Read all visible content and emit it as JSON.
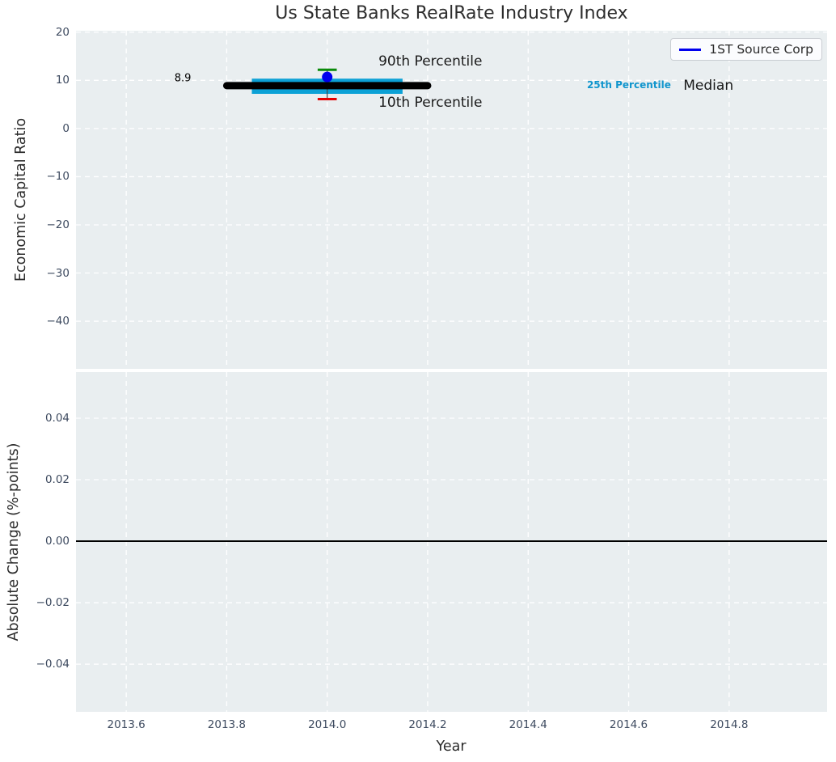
{
  "colors": {
    "figure_background": "#ffffff",
    "plot_background": "#e9eef0",
    "gridline": "#ffffff",
    "tick_label": "#3d4a5f",
    "axis_label": "#2b2b2b",
    "title": "#2d2d2d",
    "accent_blue": "#0000ee",
    "cyan_band": "#0ca1d6",
    "green_cap": "#0a8a0a",
    "red_cap": "#e60000",
    "median_black": "#000000"
  },
  "chart_data": [
    {
      "type": "line",
      "title": "Us State Banks RealRate Industry Index",
      "xlabel": "",
      "ylabel": "Economic Capital Ratio",
      "xlim": [
        2013.5,
        2014.995
      ],
      "ylim": [
        -49.9,
        20.3
      ],
      "grid": true,
      "xticks": [
        2013.6,
        2013.8,
        2014.0,
        2014.2,
        2014.4,
        2014.6,
        2014.8
      ],
      "xtick_labels": [],
      "yticks": [
        20,
        10,
        0,
        -10,
        -20,
        -30,
        -40
      ],
      "ytick_labels": [
        "20",
        "10",
        "0",
        "−10",
        "−20",
        "−30",
        "−40"
      ],
      "legend": {
        "label": "1ST Source Corp",
        "color": "#0000ee",
        "loc": "upper right"
      },
      "series": [
        {
          "name": "interquartile-band",
          "label": "25th-75th percentile band",
          "type": "band",
          "x": [
            2013.85,
            2014.15
          ],
          "y_high": 10.35,
          "y_low": 7.2,
          "color": "#0ca1d6"
        },
        {
          "name": "percentile-whisker",
          "label": "10th-90th percentile range",
          "type": "errorbar",
          "x": 2014.0,
          "y_high": 12.2,
          "y_low": 6.1,
          "cap_halfwidth": 0.019,
          "line_color": "#444444",
          "high_cap_color": "#0a8a0a",
          "low_cap_color": "#e60000",
          "linewidth": 1.2,
          "cap_linewidth": 3
        },
        {
          "name": "industry-median",
          "label": "Median",
          "type": "line",
          "x": [
            2013.8,
            2014.2
          ],
          "y": [
            8.9,
            8.9
          ],
          "color": "#000000",
          "linewidth": 9
        },
        {
          "name": "company-point",
          "label": "1ST Source Corp",
          "type": "scatter",
          "x": [
            2014.0
          ],
          "y": [
            10.7
          ],
          "color": "#0000ee",
          "markersize": 13
        }
      ],
      "annotations": [
        {
          "text": "8.9",
          "x": 2013.696,
          "y": 10.4,
          "fontsize": 13,
          "fontweight": "normal",
          "color": "#000000"
        },
        {
          "text": "90th Percentile",
          "x": 2014.102,
          "y": 14.0,
          "fontsize": 17,
          "fontweight": "normal",
          "color": "#1a1a1a"
        },
        {
          "text": "10th Percentile",
          "x": 2014.102,
          "y": 5.35,
          "fontsize": 17,
          "fontweight": "normal",
          "color": "#1a1a1a"
        },
        {
          "text": "25th Percentile",
          "x": 2014.517,
          "y": 9.0,
          "fontsize": 12,
          "fontweight": "bold",
          "color": "#1095cd"
        },
        {
          "text": "Median",
          "x": 2014.709,
          "y": 8.9,
          "fontsize": 17,
          "fontweight": "normal",
          "color": "#1a1a1a"
        }
      ]
    },
    {
      "type": "line",
      "title": "",
      "xlabel": "Year",
      "ylabel": "Absolute Change (%-points)",
      "xlim": [
        2013.5,
        2014.995
      ],
      "ylim": [
        -0.0555,
        0.055
      ],
      "grid": true,
      "xticks": [
        2013.6,
        2013.8,
        2014.0,
        2014.2,
        2014.4,
        2014.6,
        2014.8
      ],
      "xtick_labels": [
        "2013.6",
        "2013.8",
        "2014.0",
        "2014.2",
        "2014.4",
        "2014.6",
        "2014.8"
      ],
      "yticks": [
        0.04,
        0.02,
        0.0,
        -0.02,
        -0.04
      ],
      "ytick_labels": [
        "0.04",
        "0.02",
        "0.00",
        "−0.02",
        "−0.04"
      ],
      "series": [
        {
          "name": "zero-line",
          "label": "zero change baseline",
          "type": "hline",
          "y": 0.0,
          "color": "#000000",
          "linewidth": 2
        }
      ],
      "annotations": []
    }
  ]
}
